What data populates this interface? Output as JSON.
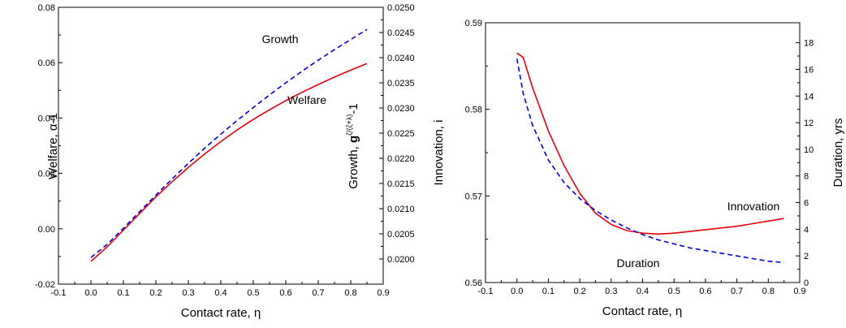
{
  "chart_data": [
    {
      "type": "line",
      "xlabel": "Contact rate, η",
      "ylabel_left": "Welfare, α-1",
      "ylabel_right_prefix": "Growth, ",
      "ylabel_right_base": "g",
      "ylabel_right_exp": "ζ/(ζ+λ)",
      "ylabel_right_suffix": "-1",
      "xlim": [
        -0.1,
        0.9
      ],
      "ylim_left": [
        -0.02,
        0.08
      ],
      "ylim_right": [
        0.0195,
        0.025
      ],
      "x_ticks": [
        "-0.1",
        "0.0",
        "0.1",
        "0.2",
        "0.3",
        "0.4",
        "0.5",
        "0.6",
        "0.7",
        "0.8",
        "0.9"
      ],
      "y_left_ticks": [
        "-0.02",
        "0.00",
        "0.02",
        "0.04",
        "0.06",
        "0.08"
      ],
      "y_right_ticks": [
        "0.0200",
        "0.0205",
        "0.0210",
        "0.0215",
        "0.0220",
        "0.0225",
        "0.0230",
        "0.0235",
        "0.0240",
        "0.0245",
        "0.0250"
      ],
      "series": [
        {
          "name": "Welfare",
          "axis": "left",
          "color": "#e8000b",
          "style": "solid",
          "x": [
            0.0,
            0.05,
            0.1,
            0.15,
            0.2,
            0.25,
            0.3,
            0.35,
            0.4,
            0.45,
            0.5,
            0.55,
            0.6,
            0.65,
            0.7,
            0.75,
            0.8,
            0.85
          ],
          "y": [
            -0.0118,
            -0.0065,
            -0.0005,
            0.0055,
            0.0115,
            0.017,
            0.0222,
            0.027,
            0.0315,
            0.0357,
            0.0395,
            0.043,
            0.0463,
            0.0493,
            0.0521,
            0.0548,
            0.0573,
            0.0597
          ]
        },
        {
          "name": "Growth",
          "axis": "right",
          "color": "#0000dd",
          "style": "dashed",
          "x": [
            0.0,
            0.05,
            0.1,
            0.15,
            0.2,
            0.25,
            0.3,
            0.35,
            0.4,
            0.45,
            0.5,
            0.55,
            0.6,
            0.65,
            0.7,
            0.75,
            0.8,
            0.85
          ],
          "y": [
            0.02003,
            0.02029,
            0.02061,
            0.02094,
            0.02127,
            0.02159,
            0.0219,
            0.0222,
            0.02248,
            0.02275,
            0.02301,
            0.02326,
            0.0235,
            0.02373,
            0.02395,
            0.02416,
            0.02436,
            0.02456
          ]
        }
      ],
      "annotations": [
        {
          "text": "Growth",
          "series": "Growth",
          "color": "#0000dd"
        },
        {
          "text": "Welfare",
          "series": "Welfare",
          "color": "#e8000b"
        }
      ]
    },
    {
      "type": "line",
      "xlabel": "Contact rate, η",
      "ylabel_left": "Innovation, i",
      "ylabel_right": "Duration, yrs",
      "xlim": [
        -0.1,
        0.9
      ],
      "ylim_left": [
        0.56,
        0.59
      ],
      "ylim_right": [
        0,
        19.5
      ],
      "x_ticks": [
        "-0.1",
        "0.0",
        "0.1",
        "0.2",
        "0.3",
        "0.4",
        "0.5",
        "0.6",
        "0.7",
        "0.8",
        "0.9"
      ],
      "y_left_ticks": [
        "0.56",
        "0.57",
        "0.58",
        "0.59"
      ],
      "y_right_ticks": [
        "0",
        "2",
        "4",
        "6",
        "8",
        "10",
        "12",
        "14",
        "16",
        "18"
      ],
      "series": [
        {
          "name": "Innovation",
          "axis": "left",
          "color": "#e8000b",
          "style": "solid",
          "x": [
            0.0,
            0.02,
            0.05,
            0.1,
            0.15,
            0.2,
            0.25,
            0.3,
            0.35,
            0.4,
            0.45,
            0.5,
            0.55,
            0.6,
            0.65,
            0.7,
            0.75,
            0.8,
            0.85
          ],
          "y": [
            0.5865,
            0.586,
            0.5825,
            0.5775,
            0.5735,
            0.5703,
            0.568,
            0.5667,
            0.566,
            0.5657,
            0.5656,
            0.5657,
            0.5659,
            0.5661,
            0.5663,
            0.5665,
            0.5668,
            0.5671,
            0.5674
          ]
        },
        {
          "name": "Duration",
          "axis": "right",
          "color": "#0000dd",
          "style": "dashed",
          "x": [
            0.0,
            0.02,
            0.05,
            0.1,
            0.15,
            0.2,
            0.25,
            0.3,
            0.35,
            0.4,
            0.45,
            0.5,
            0.55,
            0.6,
            0.65,
            0.7,
            0.75,
            0.8,
            0.85
          ],
          "y": [
            16.8,
            14.2,
            11.8,
            9.2,
            7.5,
            6.3,
            5.4,
            4.7,
            4.1,
            3.6,
            3.2,
            2.9,
            2.6,
            2.4,
            2.2,
            2.0,
            1.8,
            1.6,
            1.5
          ]
        }
      ],
      "annotations": [
        {
          "text": "Innovation",
          "series": "Innovation",
          "color": "#e8000b"
        },
        {
          "text": "Duration",
          "series": "Duration",
          "color": "#0000dd"
        }
      ]
    }
  ]
}
